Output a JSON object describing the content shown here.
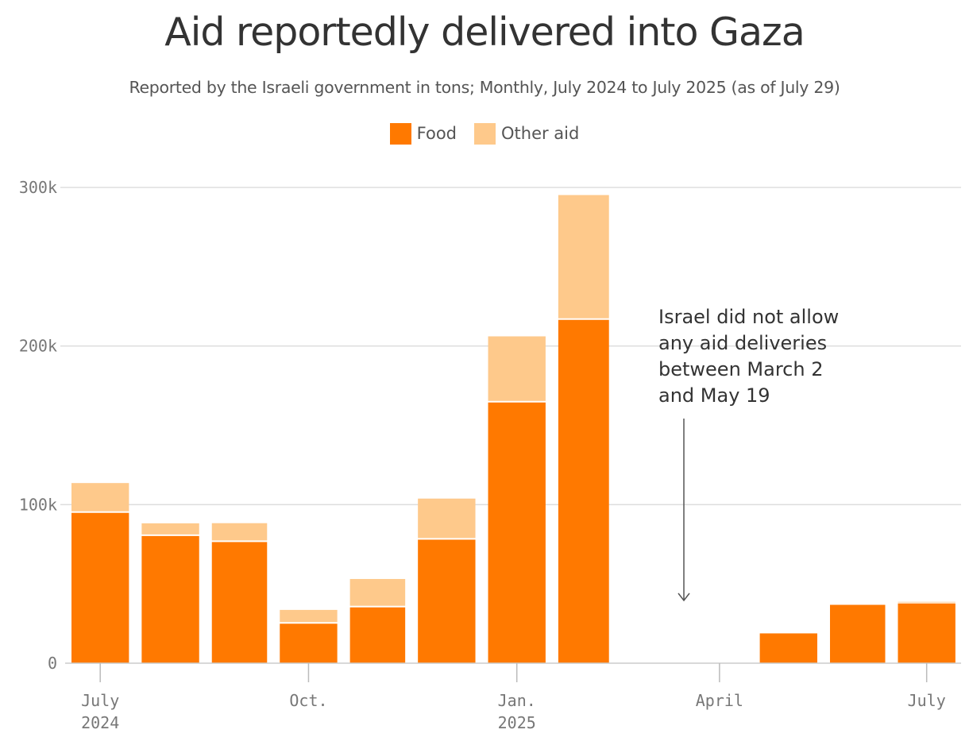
{
  "chart_data": {
    "type": "bar",
    "stacked": true,
    "title": "Aid reportedly delivered into Gaza",
    "subtitle": "Reported by the Israeli government in tons; Monthly, July 2024 to July 2025 (as of July 29)",
    "categories": [
      "2024-07",
      "2024-08",
      "2024-09",
      "2024-10",
      "2024-11",
      "2024-12",
      "2025-01",
      "2025-02",
      "2025-03",
      "2025-04",
      "2025-05",
      "2025-06",
      "2025-07"
    ],
    "series": [
      {
        "name": "Food",
        "color": "#ff7900",
        "values": [
          94800,
          80200,
          76400,
          24900,
          35200,
          77900,
          164400,
          216500,
          0,
          0,
          18800,
          36800,
          37700
        ]
      },
      {
        "name": "Other aid",
        "color": "#fec98b",
        "values": [
          18800,
          8000,
          11900,
          8700,
          17900,
          25900,
          41700,
          78700,
          0,
          0,
          0,
          0,
          1000
        ]
      }
    ],
    "ylim": [
      0,
      300000
    ],
    "yticks": [
      {
        "value": 0,
        "label": "0"
      },
      {
        "value": 100000,
        "label": "100k"
      },
      {
        "value": 200000,
        "label": "200k"
      },
      {
        "value": 300000,
        "label": "300k"
      }
    ],
    "xticks": [
      {
        "month": "2024-07",
        "lines": [
          "July",
          "2024"
        ]
      },
      {
        "month": "2024-10",
        "lines": [
          "Oct."
        ]
      },
      {
        "month": "2025-01",
        "lines": [
          "Jan.",
          "2025"
        ]
      },
      {
        "month": "2025-04",
        "lines": [
          "April"
        ]
      },
      {
        "month": "2025-07",
        "lines": [
          "July"
        ]
      }
    ],
    "grid": true,
    "legend_position": "top-center",
    "annotation": {
      "lines": [
        "Israel did not allow",
        "any aid deliveries",
        "between March 2",
        "and May 19"
      ],
      "points_to": "2025-03"
    }
  }
}
